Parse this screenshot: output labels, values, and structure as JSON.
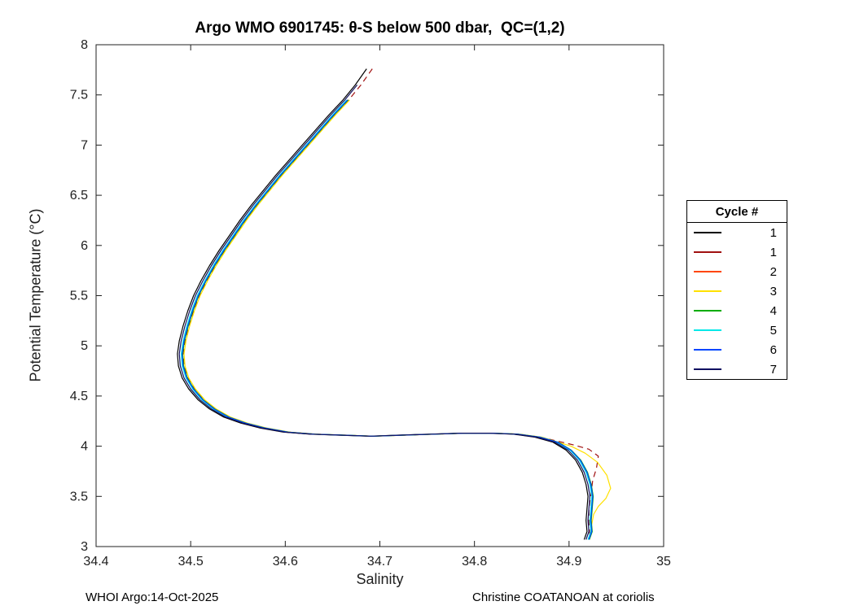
{
  "chart_data": {
    "type": "line",
    "title": "Argo WMO 6901745: θ-S below 500 dbar,  QC=(1,2)",
    "xlabel": "Salinity",
    "ylabel": "Potential Temperature (°C)",
    "xlim": [
      34.4,
      35
    ],
    "ylim": [
      3,
      8
    ],
    "grid": false,
    "legend_position": "right-outside",
    "legend_title": "Cycle #",
    "xticks": {
      "values": [
        34.4,
        34.5,
        34.6,
        34.7,
        34.8,
        34.9,
        35
      ],
      "labels": [
        "34.4",
        "34.5",
        "34.6",
        "34.7",
        "34.8",
        "34.9",
        "35"
      ]
    },
    "yticks": {
      "values": [
        3,
        3.5,
        4,
        4.5,
        5,
        5.5,
        6,
        6.5,
        7,
        7.5,
        8
      ],
      "labels": [
        "3",
        "3.5",
        "4",
        "4.5",
        "5",
        "5.5",
        "6",
        "6.5",
        "7",
        "7.5",
        "8"
      ]
    },
    "base_points": [
      [
        34.69,
        7.76
      ],
      [
        34.678,
        7.6
      ],
      [
        34.665,
        7.45
      ],
      [
        34.65,
        7.3
      ],
      [
        34.636,
        7.15
      ],
      [
        34.622,
        7.0
      ],
      [
        34.608,
        6.85
      ],
      [
        34.594,
        6.7
      ],
      [
        34.581,
        6.55
      ],
      [
        34.568,
        6.4
      ],
      [
        34.556,
        6.25
      ],
      [
        34.545,
        6.1
      ],
      [
        34.534,
        5.95
      ],
      [
        34.524,
        5.8
      ],
      [
        34.515,
        5.65
      ],
      [
        34.507,
        5.5
      ],
      [
        34.501,
        5.35
      ],
      [
        34.496,
        5.2
      ],
      [
        34.492,
        5.05
      ],
      [
        34.49,
        4.92
      ],
      [
        34.491,
        4.8
      ],
      [
        34.495,
        4.68
      ],
      [
        34.502,
        4.57
      ],
      [
        34.512,
        4.46
      ],
      [
        34.524,
        4.37
      ],
      [
        34.539,
        4.29
      ],
      [
        34.557,
        4.23
      ],
      [
        34.578,
        4.18
      ],
      [
        34.602,
        4.14
      ],
      [
        34.63,
        4.12
      ],
      [
        34.66,
        4.11
      ],
      [
        34.692,
        4.1
      ],
      [
        34.724,
        4.11
      ],
      [
        34.756,
        4.12
      ],
      [
        34.788,
        4.13
      ],
      [
        34.818,
        4.13
      ],
      [
        34.845,
        4.12
      ],
      [
        34.868,
        4.09
      ],
      [
        34.887,
        4.04
      ],
      [
        34.901,
        3.96
      ],
      [
        34.911,
        3.86
      ],
      [
        34.918,
        3.74
      ],
      [
        34.922,
        3.62
      ],
      [
        34.924,
        3.5
      ],
      [
        34.923,
        3.38
      ],
      [
        34.922,
        3.26
      ],
      [
        34.923,
        3.15
      ],
      [
        34.92,
        3.07
      ]
    ],
    "series": [
      {
        "label": "1",
        "color": "#000000",
        "salinity_offset": -0.004,
        "theta_top": 7.76
      },
      {
        "label": "1",
        "color": "#A01010",
        "salinity_offset": 0.002,
        "theta_top": 7.76,
        "dash": "7,5",
        "tail_below": 4.05,
        "tail": [
          [
            34.906,
            4.01
          ],
          [
            34.921,
            3.97
          ],
          [
            34.931,
            3.9
          ],
          [
            34.929,
            3.78
          ],
          [
            34.925,
            3.66
          ],
          [
            34.923,
            3.52
          ],
          [
            34.921,
            3.38
          ],
          [
            34.921,
            3.24
          ],
          [
            34.922,
            3.1
          ]
        ]
      },
      {
        "label": "2",
        "color": "#FF4500",
        "salinity_offset": 0.001,
        "theta_top": 7.52
      },
      {
        "label": "3",
        "color": "#FFE100",
        "salinity_offset": 0.003,
        "theta_top": 7.45,
        "tail_below": 4.05,
        "tail": [
          [
            34.902,
            4.0
          ],
          [
            34.917,
            3.93
          ],
          [
            34.93,
            3.84
          ],
          [
            34.94,
            3.71
          ],
          [
            34.944,
            3.58
          ],
          [
            34.939,
            3.48
          ],
          [
            34.931,
            3.4
          ],
          [
            34.926,
            3.32
          ],
          [
            34.924,
            3.22
          ]
        ]
      },
      {
        "label": "4",
        "color": "#00AC00",
        "salinity_offset": 0.0015,
        "theta_top": 7.45
      },
      {
        "label": "5",
        "color": "#00E8E8",
        "salinity_offset": 0.0,
        "theta_top": 7.45
      },
      {
        "label": "6",
        "color": "#0046FF",
        "salinity_offset": 0.001,
        "theta_top": 7.5
      },
      {
        "label": "7",
        "color": "#101060",
        "salinity_offset": -0.002,
        "theta_top": 7.72
      }
    ]
  },
  "footer": {
    "left": "WHOI Argo:14-Oct-2025",
    "right": "Christine COATANOAN at coriolis"
  }
}
